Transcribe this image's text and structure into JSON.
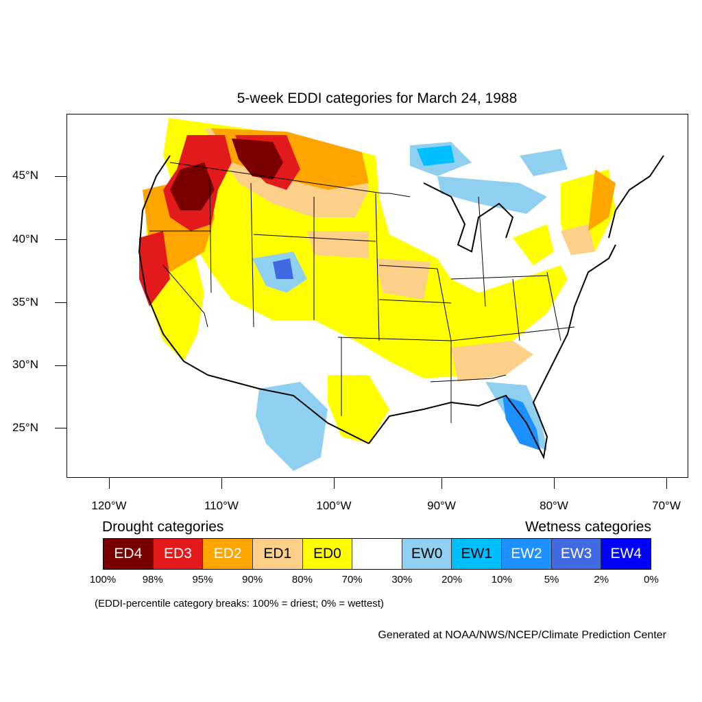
{
  "title": "5-week EDDI categories for March 24, 1988",
  "axes": {
    "lat_labels": [
      "45°N",
      "40°N",
      "35°N",
      "30°N",
      "25°N"
    ],
    "lon_labels": [
      "120°W",
      "110°W",
      "100°W",
      "90°W",
      "80°W",
      "70°W"
    ]
  },
  "legend": {
    "drought_heading": "Drought categories",
    "wetness_heading": "Wetness categories",
    "categories": [
      {
        "label": "ED4",
        "color": "#7a0000",
        "text_color": "#ffffff"
      },
      {
        "label": "ED3",
        "color": "#e31a1c",
        "text_color": "#ffffff"
      },
      {
        "label": "ED2",
        "color": "#ffa500",
        "text_color": "#ffffff"
      },
      {
        "label": "ED1",
        "color": "#fdd08a",
        "text_color": "#000000"
      },
      {
        "label": "ED0",
        "color": "#ffff00",
        "text_color": "#000000"
      },
      {
        "label": "",
        "color": "#ffffff",
        "text_color": "#000000"
      },
      {
        "label": "EW0",
        "color": "#8fcff0",
        "text_color": "#000000"
      },
      {
        "label": "EW1",
        "color": "#00bfff",
        "text_color": "#000000"
      },
      {
        "label": "EW2",
        "color": "#1e90ff",
        "text_color": "#ffffff"
      },
      {
        "label": "EW3",
        "color": "#4169e1",
        "text_color": "#ffffff"
      },
      {
        "label": "EW4",
        "color": "#0000ff",
        "text_color": "#ffffff"
      }
    ],
    "breaks": [
      "100%",
      "98%",
      "95%",
      "90%",
      "80%",
      "70%",
      "30%",
      "20%",
      "10%",
      "5%",
      "2%",
      "0%"
    ],
    "note": "(EDDI-percentile category breaks: 100% = driest; 0% = wettest)"
  },
  "credit": "Generated at NOAA/NWS/NCEP/Climate Prediction Center"
}
